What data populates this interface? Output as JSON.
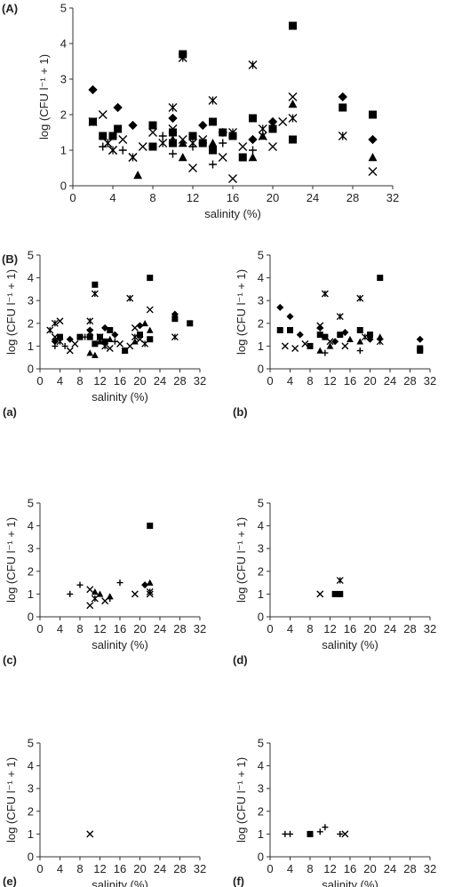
{
  "figure": {
    "panel_A_label": "(A)",
    "panel_B_label": "(B)"
  },
  "legend_note": "Marker shapes: square, diamond, triangle, cross, x, asterisk",
  "chart_data": [
    {
      "id": "A",
      "type": "scatter",
      "label": "(A)",
      "xlabel": "salinity (%)",
      "ylabel": "log (CFU l⁻¹ + 1)",
      "xlim": [
        0,
        32
      ],
      "ylim": [
        0,
        5
      ],
      "xticks": [
        0,
        4,
        8,
        12,
        16,
        20,
        24,
        28,
        32
      ],
      "yticks": [
        0,
        1,
        2,
        3,
        4,
        5
      ],
      "series": [
        {
          "marker": "square",
          "points": [
            [
              2,
              1.8
            ],
            [
              3,
              1.4
            ],
            [
              4,
              1.4
            ],
            [
              4.5,
              1.6
            ],
            [
              8,
              1.7
            ],
            [
              8,
              1.1
            ],
            [
              10,
              1.5
            ],
            [
              10,
              1.2
            ],
            [
              11,
              3.7
            ],
            [
              12,
              1.4
            ],
            [
              13,
              1.2
            ],
            [
              14,
              1.8
            ],
            [
              14,
              1.0
            ],
            [
              15,
              1.5
            ],
            [
              16,
              1.4
            ],
            [
              17,
              0.8
            ],
            [
              18,
              1.9
            ],
            [
              20,
              1.6
            ],
            [
              22,
              4.5
            ],
            [
              22,
              1.3
            ],
            [
              27,
              2.2
            ],
            [
              30,
              2.0
            ]
          ]
        },
        {
          "marker": "diamond",
          "points": [
            [
              2,
              2.7
            ],
            [
              4.5,
              2.2
            ],
            [
              6,
              1.7
            ],
            [
              10,
              1.9
            ],
            [
              13,
              1.7
            ],
            [
              15,
              1.5
            ],
            [
              18,
              1.3
            ],
            [
              20,
              1.8
            ],
            [
              27,
              2.5
            ],
            [
              30,
              1.3
            ]
          ]
        },
        {
          "marker": "triangle",
          "points": [
            [
              6.5,
              0.3
            ],
            [
              10,
              1.3
            ],
            [
              11,
              0.8
            ],
            [
              11,
              1.2
            ],
            [
              14,
              1.2
            ],
            [
              18,
              0.8
            ],
            [
              19,
              1.4
            ],
            [
              22,
              2.3
            ],
            [
              30,
              0.8
            ]
          ]
        },
        {
          "marker": "plus",
          "points": [
            [
              3,
              1.1
            ],
            [
              5,
              1.0
            ],
            [
              9,
              1.4
            ],
            [
              10,
              0.9
            ],
            [
              12,
              1.1
            ],
            [
              14,
              0.6
            ],
            [
              15,
              1.2
            ],
            [
              18,
              1.0
            ]
          ]
        },
        {
          "marker": "x",
          "points": [
            [
              3,
              2.0
            ],
            [
              4,
              1.0
            ],
            [
              5,
              1.3
            ],
            [
              6,
              0.8
            ],
            [
              7,
              1.1
            ],
            [
              8,
              1.5
            ],
            [
              10,
              1.6
            ],
            [
              11,
              1.3
            ],
            [
              12,
              0.5
            ],
            [
              13,
              1.3
            ],
            [
              15,
              0.8
            ],
            [
              16,
              0.2
            ],
            [
              17,
              1.1
            ],
            [
              19,
              1.4
            ],
            [
              20,
              1.1
            ],
            [
              21,
              1.8
            ],
            [
              22,
              2.5
            ],
            [
              30,
              0.4
            ]
          ]
        },
        {
          "marker": "asterisk",
          "points": [
            [
              2,
              1.8
            ],
            [
              3.5,
              1.2
            ],
            [
              4,
              1.0
            ],
            [
              6,
              0.8
            ],
            [
              9,
              1.2
            ],
            [
              10,
              2.2
            ],
            [
              11,
              3.6
            ],
            [
              12,
              1.2
            ],
            [
              14,
              2.4
            ],
            [
              16,
              1.5
            ],
            [
              18,
              3.4
            ],
            [
              19,
              1.6
            ],
            [
              22,
              1.9
            ],
            [
              27,
              1.4
            ]
          ]
        }
      ]
    },
    {
      "id": "a",
      "type": "scatter",
      "label": "(a)",
      "xlabel": "salinity (%)",
      "ylabel": "log (CFU l⁻¹ + 1)",
      "xlim": [
        0,
        32
      ],
      "ylim": [
        0,
        5
      ],
      "xticks": [
        0,
        4,
        8,
        12,
        16,
        20,
        24,
        28,
        32
      ],
      "yticks": [
        0,
        1,
        2,
        3,
        4,
        5
      ],
      "series": [
        {
          "marker": "square",
          "points": [
            [
              4,
              1.4
            ],
            [
              8,
              1.4
            ],
            [
              10,
              1.4
            ],
            [
              11,
              3.7
            ],
            [
              11,
              1.1
            ],
            [
              12,
              1.4
            ],
            [
              13,
              1.2
            ],
            [
              14,
              1.7
            ],
            [
              17,
              0.8
            ],
            [
              20,
              1.5
            ],
            [
              22,
              4.0
            ],
            [
              22,
              1.3
            ],
            [
              27,
              2.2
            ],
            [
              30,
              2.0
            ]
          ]
        },
        {
          "marker": "diamond",
          "points": [
            [
              3,
              1.2
            ],
            [
              6,
              1.3
            ],
            [
              10,
              1.7
            ],
            [
              13,
              1.8
            ],
            [
              15,
              1.5
            ],
            [
              20,
              1.9
            ],
            [
              27,
              2.4
            ]
          ]
        },
        {
          "marker": "triangle",
          "points": [
            [
              10,
              0.7
            ],
            [
              11,
              0.6
            ],
            [
              12,
              1.2
            ],
            [
              14,
              1.3
            ],
            [
              17,
              0.8
            ],
            [
              19,
              1.2
            ],
            [
              21,
              2.0
            ],
            [
              22,
              1.7
            ]
          ]
        },
        {
          "marker": "plus",
          "points": [
            [
              3,
              1.0
            ],
            [
              5,
              1.0
            ],
            [
              9,
              1.4
            ],
            [
              15,
              1.2
            ]
          ]
        },
        {
          "marker": "x",
          "points": [
            [
              3,
              1.4
            ],
            [
              4,
              2.1
            ],
            [
              6,
              0.8
            ],
            [
              7,
              1.1
            ],
            [
              10,
              1.6
            ],
            [
              12,
              1.4
            ],
            [
              14,
              0.9
            ],
            [
              16,
              1.1
            ],
            [
              18,
              1.0
            ],
            [
              19,
              1.8
            ],
            [
              20,
              1.3
            ],
            [
              22,
              2.6
            ]
          ]
        },
        {
          "marker": "asterisk",
          "points": [
            [
              2,
              1.7
            ],
            [
              3,
              2.0
            ],
            [
              4,
              1.2
            ],
            [
              10,
              2.1
            ],
            [
              11,
              3.3
            ],
            [
              13,
              1.0
            ],
            [
              18,
              3.1
            ],
            [
              19,
              1.4
            ],
            [
              21,
              1.1
            ],
            [
              27,
              1.4
            ]
          ]
        }
      ]
    },
    {
      "id": "b",
      "type": "scatter",
      "label": "(b)",
      "xlabel": "",
      "ylabel": "log (CFU l⁻¹ + 1)",
      "xlim": [
        0,
        32
      ],
      "ylim": [
        0,
        5
      ],
      "xticks": [
        0,
        4,
        8,
        12,
        16,
        20,
        24,
        28,
        32
      ],
      "yticks": [
        0,
        1,
        2,
        3,
        4,
        5
      ],
      "series": [
        {
          "marker": "square",
          "points": [
            [
              2,
              1.7
            ],
            [
              4,
              1.7
            ],
            [
              8,
              1.0
            ],
            [
              10,
              1.5
            ],
            [
              11,
              1.4
            ],
            [
              14,
              1.5
            ],
            [
              18,
              1.7
            ],
            [
              20,
              1.5
            ],
            [
              22,
              4.0
            ],
            [
              30,
              0.9
            ],
            [
              30,
              0.8
            ]
          ]
        },
        {
          "marker": "diamond",
          "points": [
            [
              2,
              2.7
            ],
            [
              4,
              2.3
            ],
            [
              6,
              1.5
            ],
            [
              10,
              1.8
            ],
            [
              13,
              1.2
            ],
            [
              15,
              1.6
            ],
            [
              20,
              1.3
            ],
            [
              30,
              1.3
            ]
          ]
        },
        {
          "marker": "triangle",
          "points": [
            [
              10,
              0.8
            ],
            [
              12,
              1.0
            ],
            [
              16,
              1.3
            ],
            [
              18,
              1.2
            ],
            [
              22,
              1.4
            ]
          ]
        },
        {
          "marker": "plus",
          "points": [
            [
              11,
              0.7
            ],
            [
              18,
              0.8
            ],
            [
              22,
              1.3
            ]
          ]
        },
        {
          "marker": "x",
          "points": [
            [
              3,
              1.0
            ],
            [
              5,
              0.9
            ],
            [
              7,
              1.1
            ],
            [
              10,
              1.9
            ],
            [
              12,
              1.2
            ],
            [
              15,
              1.0
            ]
          ]
        },
        {
          "marker": "asterisk",
          "points": [
            [
              11,
              3.3
            ],
            [
              14,
              2.3
            ],
            [
              18,
              3.1
            ],
            [
              19,
              1.4
            ],
            [
              22,
              1.2
            ]
          ]
        }
      ]
    },
    {
      "id": "c",
      "type": "scatter",
      "label": "(c)",
      "xlabel": "salinity (%)",
      "ylabel": "log (CFU l⁻¹ + 1)",
      "xlim": [
        0,
        32
      ],
      "ylim": [
        0,
        5
      ],
      "xticks": [
        0,
        4,
        8,
        12,
        16,
        20,
        24,
        28,
        32
      ],
      "yticks": [
        0,
        1,
        2,
        3,
        4,
        5
      ],
      "series": [
        {
          "marker": "square",
          "points": [
            [
              22,
              4.0
            ]
          ]
        },
        {
          "marker": "diamond",
          "points": [
            [
              21,
              1.4
            ]
          ]
        },
        {
          "marker": "triangle",
          "points": [
            [
              11,
              1.1
            ],
            [
              12,
              1.0
            ],
            [
              14,
              0.9
            ],
            [
              22,
              1.5
            ]
          ]
        },
        {
          "marker": "plus",
          "points": [
            [
              6,
              1.0
            ],
            [
              8,
              1.4
            ],
            [
              14,
              0.8
            ],
            [
              16,
              1.5
            ]
          ]
        },
        {
          "marker": "x",
          "points": [
            [
              10,
              0.5
            ],
            [
              10,
              1.2
            ],
            [
              13,
              0.7
            ],
            [
              19,
              1.0
            ],
            [
              22,
              1.0
            ]
          ]
        },
        {
          "marker": "asterisk",
          "points": [
            [
              11,
              0.8
            ],
            [
              22,
              1.1
            ]
          ]
        }
      ]
    },
    {
      "id": "d",
      "type": "scatter",
      "label": "(d)",
      "xlabel": "salinity (%)",
      "ylabel": "log (CFU l⁻¹ + 1)",
      "xlim": [
        0,
        32
      ],
      "ylim": [
        0,
        5
      ],
      "xticks": [
        0,
        4,
        8,
        12,
        16,
        20,
        24,
        28,
        32
      ],
      "yticks": [
        0,
        1,
        2,
        3,
        4,
        5
      ],
      "series": [
        {
          "marker": "square",
          "points": [
            [
              13,
              1.0
            ],
            [
              14,
              1.0
            ]
          ]
        },
        {
          "marker": "x",
          "points": [
            [
              10,
              1.0
            ]
          ]
        },
        {
          "marker": "asterisk",
          "points": [
            [
              14,
              1.6
            ]
          ]
        }
      ]
    },
    {
      "id": "e",
      "type": "scatter",
      "label": "(e)",
      "xlabel": "salinity (%)",
      "ylabel": "log (CFU l⁻¹ + 1)",
      "xlim": [
        0,
        32
      ],
      "ylim": [
        0,
        5
      ],
      "xticks": [
        0,
        4,
        8,
        12,
        16,
        20,
        24,
        28,
        32
      ],
      "yticks": [
        0,
        1,
        2,
        3,
        4,
        5
      ],
      "series": [
        {
          "marker": "x",
          "points": [
            [
              10,
              1.0
            ]
          ]
        }
      ]
    },
    {
      "id": "f",
      "type": "scatter",
      "label": "(f)",
      "xlabel": "salinity (%)",
      "ylabel": "log (CFU l⁻¹ + 1)",
      "xlim": [
        0,
        32
      ],
      "ylim": [
        0,
        5
      ],
      "xticks": [
        0,
        4,
        8,
        12,
        16,
        20,
        24,
        28,
        32
      ],
      "yticks": [
        0,
        1,
        2,
        3,
        4,
        5
      ],
      "series": [
        {
          "marker": "square",
          "points": [
            [
              8,
              1.0
            ]
          ]
        },
        {
          "marker": "plus",
          "points": [
            [
              3,
              1.0
            ],
            [
              4,
              1.0
            ],
            [
              10,
              1.1
            ],
            [
              11,
              1.3
            ],
            [
              14,
              1.0
            ]
          ]
        },
        {
          "marker": "x",
          "points": [
            [
              15,
              1.0
            ]
          ]
        }
      ]
    }
  ]
}
